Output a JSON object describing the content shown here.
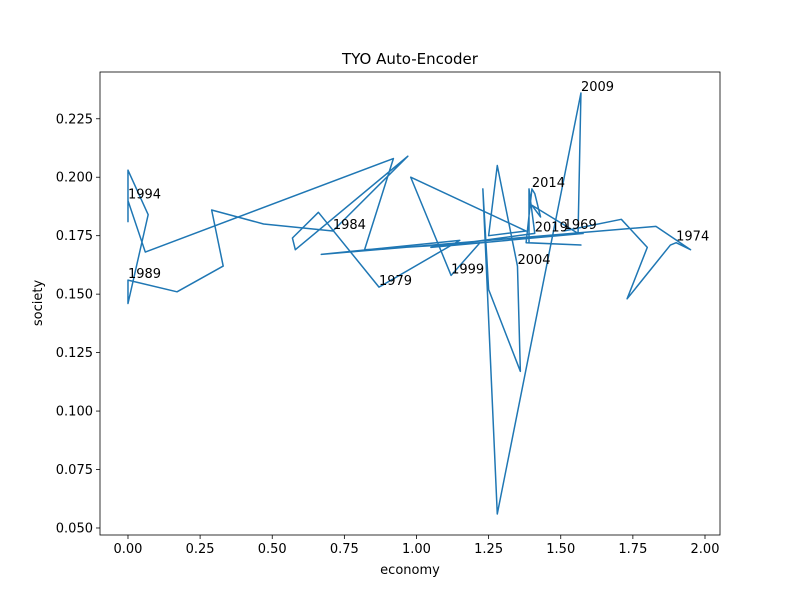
{
  "chart_data": {
    "type": "line",
    "title": "TYO Auto-Encoder",
    "x_label": "economy",
    "y_label": "society",
    "x": [
      1.51,
      1.71,
      1.8,
      1.73,
      1.88,
      1.9,
      1.95,
      1.83,
      0.67,
      1.15,
      0.87,
      0.66,
      0.57,
      0.58,
      0.97,
      0.71,
      0.47,
      0.29,
      0.33,
      0.17,
      0.0,
      0.0,
      0.07,
      0.0,
      0.0,
      0.0,
      0.06,
      0.92,
      0.82,
      1.22,
      1.12,
      0.98,
      1.38,
      1.25,
      1.28,
      1.35,
      1.36,
      1.25,
      1.23,
      1.28,
      1.57,
      1.56,
      1.4,
      1.43,
      1.41,
      1.4,
      1.38,
      1.57,
      1.39,
      1.39,
      1.41,
      1.05,
      1.58
    ],
    "series": [
      {
        "color": "#1f77b4",
        "values": [
          0.177,
          0.182,
          0.17,
          0.148,
          0.171,
          0.172,
          0.169,
          0.179,
          0.167,
          0.173,
          0.153,
          0.185,
          0.174,
          0.169,
          0.209,
          0.177,
          0.18,
          0.186,
          0.162,
          0.151,
          0.156,
          0.146,
          0.184,
          0.203,
          0.181,
          0.19,
          0.168,
          0.208,
          0.169,
          0.172,
          0.158,
          0.2,
          0.177,
          0.175,
          0.205,
          0.162,
          0.117,
          0.152,
          0.195,
          0.056,
          0.236,
          0.176,
          0.188,
          0.183,
          0.193,
          0.195,
          0.172,
          0.171,
          0.172,
          0.195,
          0.176,
          0.17,
          0.176
        ]
      }
    ],
    "annotations": [
      {
        "text": "1969",
        "x": 1.51,
        "y": 0.177
      },
      {
        "text": "1974",
        "x": 1.9,
        "y": 0.172
      },
      {
        "text": "1979",
        "x": 0.87,
        "y": 0.153
      },
      {
        "text": "1984",
        "x": 0.71,
        "y": 0.177
      },
      {
        "text": "1989",
        "x": 0.0,
        "y": 0.156
      },
      {
        "text": "1994",
        "x": 0.0,
        "y": 0.19
      },
      {
        "text": "1999",
        "x": 1.12,
        "y": 0.158
      },
      {
        "text": "2004",
        "x": 1.35,
        "y": 0.162
      },
      {
        "text": "2009",
        "x": 1.57,
        "y": 0.236
      },
      {
        "text": "2014",
        "x": 1.4,
        "y": 0.195
      },
      {
        "text": "2019",
        "x": 1.41,
        "y": 0.176
      }
    ],
    "xlim": [
      -0.097,
      2.052
    ],
    "ylim": [
      0.047,
      0.245
    ],
    "xticks": [
      {
        "value": 0,
        "label": "0.00"
      },
      {
        "value": 0.25,
        "label": "0.25"
      },
      {
        "value": 0.5,
        "label": "0.50"
      },
      {
        "value": 0.75,
        "label": "0.75"
      },
      {
        "value": 1,
        "label": "1.00"
      },
      {
        "value": 1.25,
        "label": "1.25"
      },
      {
        "value": 1.5,
        "label": "1.50"
      },
      {
        "value": 1.75,
        "label": "1.75"
      },
      {
        "value": 2,
        "label": "2.00"
      }
    ],
    "yticks": [
      {
        "value": 0.05,
        "label": "0.050"
      },
      {
        "value": 0.075,
        "label": "0.075"
      },
      {
        "value": 0.1,
        "label": "0.100"
      },
      {
        "value": 0.125,
        "label": "0.125"
      },
      {
        "value": 0.15,
        "label": "0.150"
      },
      {
        "value": 0.175,
        "label": "0.175"
      },
      {
        "value": 0.2,
        "label": "0.200"
      },
      {
        "value": 0.225,
        "label": "0.225"
      }
    ]
  }
}
